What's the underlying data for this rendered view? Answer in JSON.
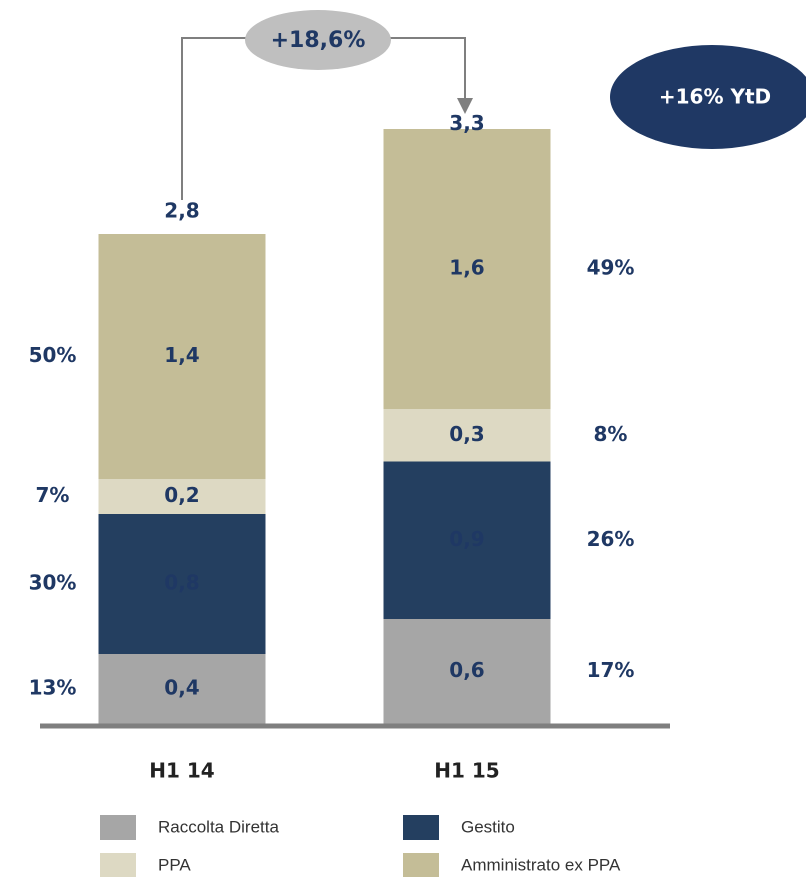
{
  "chart_data": {
    "type": "stacked_bar",
    "categories": [
      "H1 14",
      "H1 15"
    ],
    "series": [
      {
        "name": "Raccolta Diretta",
        "color": "#a6a6a6",
        "values": [
          0.4,
          0.6
        ],
        "value_labels": [
          "0,4",
          "0,6"
        ],
        "shares": [
          13,
          17
        ],
        "share_labels": [
          "13%",
          "17%"
        ]
      },
      {
        "name": "Gestito",
        "color": "#243f60",
        "values": [
          0.8,
          0.9
        ],
        "value_labels": [
          "0,8",
          "0,9"
        ],
        "shares": [
          30,
          26
        ],
        "share_labels": [
          "30%",
          "26%"
        ]
      },
      {
        "name": "PPA",
        "color": "#ddd9c3",
        "values": [
          0.2,
          0.3
        ],
        "value_labels": [
          "0,2",
          "0,3"
        ],
        "shares": [
          7,
          8
        ],
        "share_labels": [
          "7%",
          "8%"
        ]
      },
      {
        "name": "Amministrato ex PPA",
        "color": "#c4bd97",
        "values": [
          1.4,
          1.6
        ],
        "value_labels": [
          "1,4",
          "1,6"
        ],
        "shares": [
          50,
          49
        ],
        "share_labels": [
          "50%",
          "49%"
        ]
      }
    ],
    "totals": [
      2.8,
      3.3
    ],
    "total_labels": [
      "2,8",
      "3,3"
    ],
    "annotations": [
      "+18,6%",
      "+16% YtD"
    ]
  }
}
